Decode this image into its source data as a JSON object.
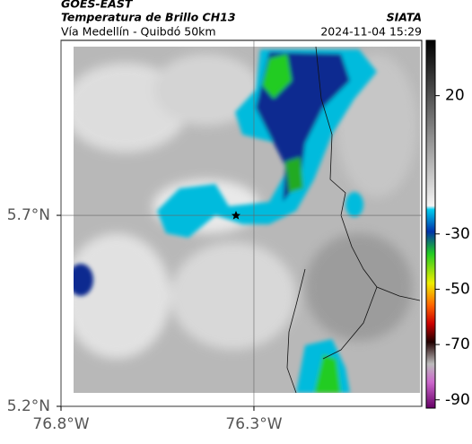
{
  "header": {
    "satellite": "GOES-EAST",
    "product": "Temperatura de Brillo CH13",
    "source": "SIATA",
    "region": "Vía Medellín - Quibdó 50km",
    "timestamp": "2024-11-04 15:29"
  },
  "map": {
    "lon_range": [
      -76.8,
      -75.865
    ],
    "lat_range": [
      5.2,
      6.158
    ],
    "lat_ticks": [
      {
        "value": 5.7,
        "label": "5.7°N"
      },
      {
        "value": 5.2,
        "label": "5.2°N"
      }
    ],
    "lon_ticks": [
      {
        "value": -76.8,
        "label": "76.8°W"
      },
      {
        "value": -76.3,
        "label": "76.3°W"
      }
    ]
  },
  "colorbar": {
    "range": [
      -93,
      40
    ],
    "ticks": [
      20,
      -30,
      -50,
      -70,
      -90
    ]
  }
}
